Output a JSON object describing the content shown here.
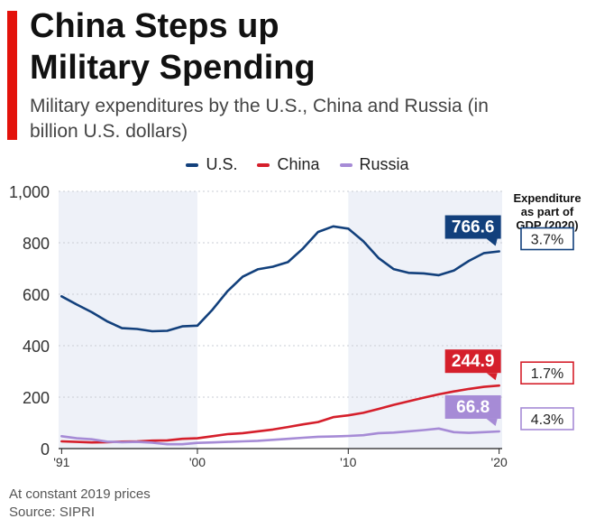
{
  "header": {
    "title_line1": "China Steps up",
    "title_line2": "Military Spending",
    "subtitle": "Military expenditures by the U.S., China and Russia (in billion U.S. dollars)"
  },
  "colors": {
    "accent": "#e3120b",
    "us": "#12407c",
    "china": "#d51f2b",
    "russia": "#a68bd6"
  },
  "footer": {
    "note": "At constant 2019 prices",
    "source": "Source: SIPRI"
  },
  "chart_data": {
    "type": "line",
    "title": "Military expenditures by the U.S., China and Russia (in billion U.S. dollars)",
    "xlabel": "",
    "ylabel": "",
    "ylim": [
      0,
      1000
    ],
    "yticks": [
      0,
      200,
      400,
      600,
      800,
      1000
    ],
    "ytick_labels": [
      "0",
      "200",
      "400",
      "600",
      "800",
      "1,000"
    ],
    "xticks": [
      1991,
      2000,
      2010,
      2020
    ],
    "xtick_labels": [
      "'91",
      "'00",
      "'10",
      "'20"
    ],
    "grid": true,
    "legend_position": "top-center",
    "x": [
      1991,
      1992,
      1993,
      1994,
      1995,
      1996,
      1997,
      1998,
      1999,
      2000,
      2001,
      2002,
      2003,
      2004,
      2005,
      2006,
      2007,
      2008,
      2009,
      2010,
      2011,
      2012,
      2013,
      2014,
      2015,
      2016,
      2017,
      2018,
      2019,
      2020
    ],
    "series": [
      {
        "name": "U.S.",
        "key": "us",
        "values": [
          592,
          560,
          530,
          495,
          468,
          465,
          456,
          458,
          475,
          478,
          540,
          612,
          668,
          697,
          707,
          725,
          778,
          842,
          864,
          855,
          806,
          741,
          698,
          683,
          681,
          674,
          692,
          730,
          760,
          766.6
        ],
        "end_label": "766.6",
        "gdp_share": "3.7%"
      },
      {
        "name": "China",
        "key": "china",
        "values": [
          28,
          26,
          24,
          25,
          27,
          28,
          31,
          32,
          38,
          40,
          48,
          56,
          60,
          67,
          74,
          84,
          94,
          103,
          122,
          129,
          139,
          154,
          170,
          184,
          198,
          211,
          222,
          232,
          240,
          244.9
        ],
        "end_label": "244.9",
        "gdp_share": "1.7%"
      },
      {
        "name": "Russia",
        "key": "russia",
        "values": [
          48,
          40,
          36,
          27,
          25,
          26,
          23,
          17,
          17,
          22,
          24,
          26,
          28,
          30,
          34,
          38,
          42,
          46,
          47,
          49,
          52,
          60,
          62,
          67,
          72,
          78,
          64,
          61,
          64,
          66.8
        ],
        "end_label": "66.8",
        "gdp_share": "4.3%"
      }
    ],
    "side_panel_title": [
      "Expenditure",
      "as part of",
      "GDP (2020)"
    ],
    "annotations": [
      "At constant 2019 prices"
    ]
  }
}
